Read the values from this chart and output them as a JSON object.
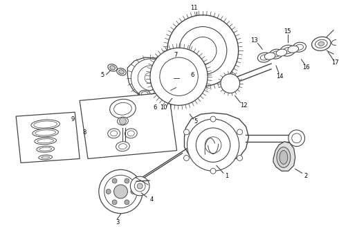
{
  "background_color": "#ffffff",
  "line_color": "#444444",
  "figure_width": 4.9,
  "figure_height": 3.6,
  "dpi": 100
}
